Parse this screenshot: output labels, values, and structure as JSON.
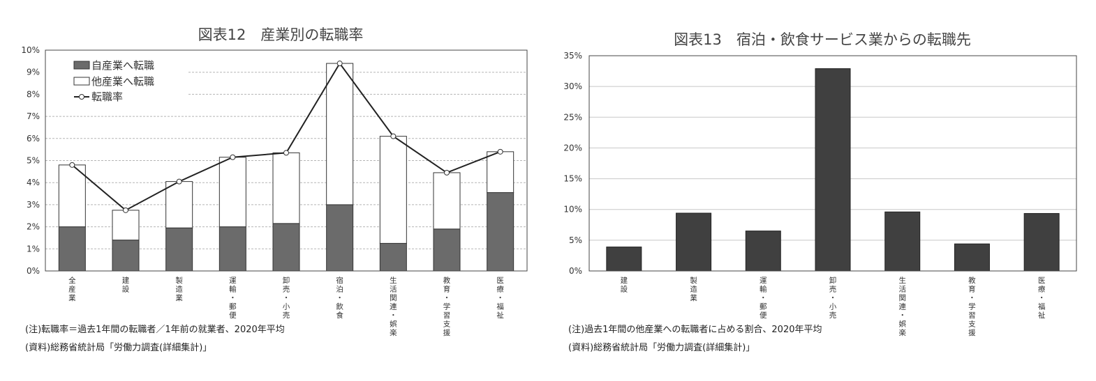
{
  "chart_data": [
    {
      "type": "bar",
      "stacked": true,
      "title": "図表12　産業別の転職率",
      "categories": [
        "全産業",
        "建設",
        "製造業",
        "運輸・郵便",
        "卸売・小売",
        "宿泊・飲食",
        "生活関連・娯楽",
        "教育・学習支援",
        "医療・福祉"
      ],
      "series": [
        {
          "name": "自産業へ転職",
          "type": "bar",
          "color": "#6b6b6b",
          "values": [
            2.0,
            1.4,
            1.95,
            2.0,
            2.15,
            3.0,
            1.25,
            1.9,
            3.55
          ]
        },
        {
          "name": "他産業へ転職",
          "type": "bar",
          "color": "#ffffff",
          "values": [
            2.8,
            1.35,
            2.1,
            3.15,
            3.2,
            6.4,
            4.85,
            2.55,
            1.85
          ]
        },
        {
          "name": "転職率",
          "type": "line",
          "color": "#222222",
          "values": [
            4.8,
            2.75,
            4.05,
            5.15,
            5.35,
            9.4,
            6.1,
            4.45,
            5.4
          ]
        }
      ],
      "yticks": [
        "0%",
        "1%",
        "2%",
        "3%",
        "4%",
        "5%",
        "6%",
        "7%",
        "8%",
        "9%",
        "10%"
      ],
      "ylim": [
        0,
        10
      ],
      "grid": true,
      "legend": "top-left",
      "notes": [
        "(注)転職率＝過去1年間の転職者／1年前の就業者、2020年平均",
        "(資料)総務省統計局「労働力調査(詳細集計)」"
      ]
    },
    {
      "type": "bar",
      "title": "図表13　宿泊・飲食サービス業からの転職先",
      "categories": [
        "建設",
        "製造業",
        "運輸・郵便",
        "卸売・小売",
        "生活関連・娯楽",
        "教育・学習支援",
        "医療・福祉"
      ],
      "series": [
        {
          "values": [
            3.9,
            9.4,
            6.5,
            32.9,
            9.6,
            4.4,
            9.35
          ],
          "color": "#404040"
        }
      ],
      "yticks": [
        "0%",
        "5%",
        "10%",
        "15%",
        "20%",
        "25%",
        "30%",
        "35%"
      ],
      "ylim": [
        0,
        35
      ],
      "grid": true,
      "notes": [
        "(注)過去1年間の他産業への転職者に占める割合、2020年平均",
        "(資料)総務省統計局「労働力調査(詳細集計)」"
      ]
    }
  ]
}
